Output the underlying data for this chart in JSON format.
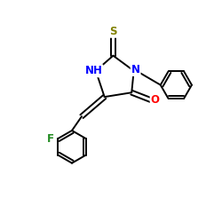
{
  "background_color": "#ffffff",
  "figsize": [
    2.5,
    2.5
  ],
  "dpi": 100,
  "atom_colors": {
    "N": "#0000ff",
    "O": "#ff0000",
    "S": "#808000",
    "F": "#228B22",
    "C": "#000000"
  },
  "bond_color": "#000000",
  "bond_lw": 1.4,
  "font_size": 8.5
}
